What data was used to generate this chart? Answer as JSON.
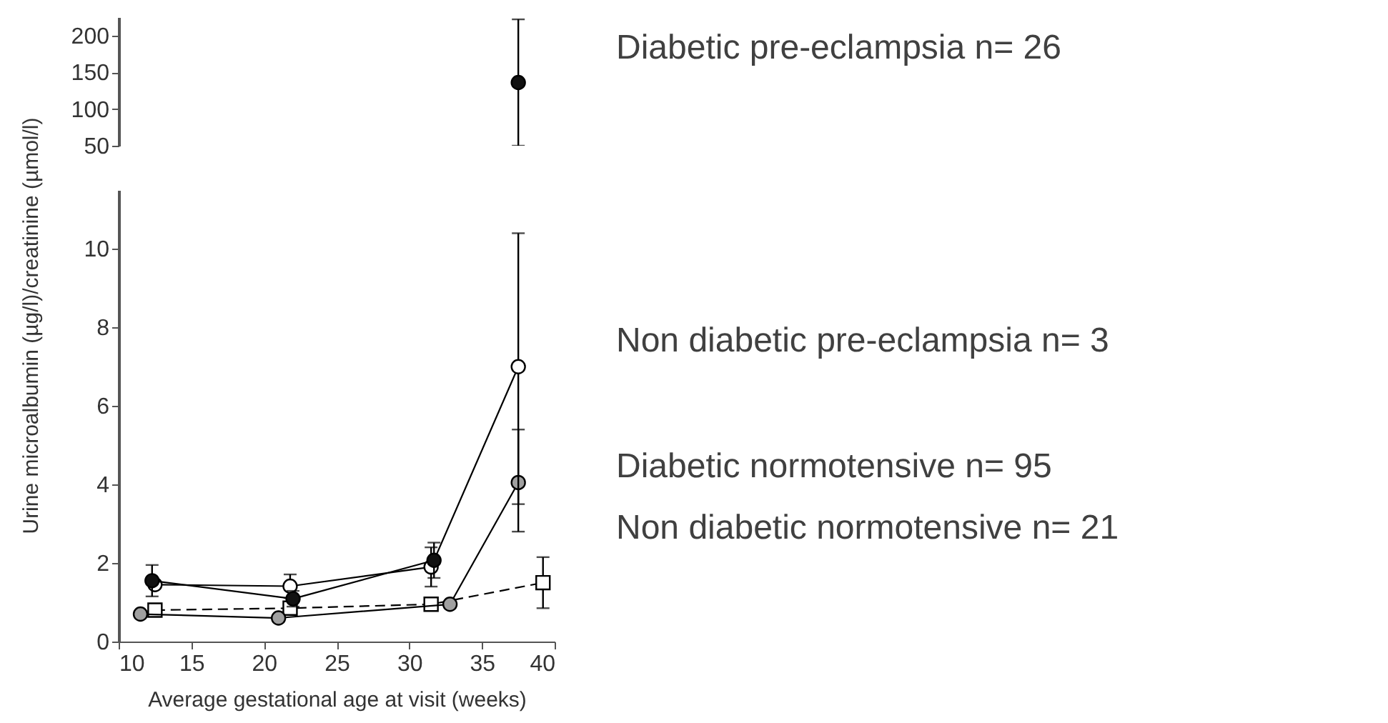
{
  "chart_data": [
    {
      "type": "line",
      "xlim": [
        10,
        40
      ],
      "ylim": [
        50,
        225
      ],
      "yticks": [
        50,
        100,
        150,
        200
      ],
      "tick_labels": "y",
      "grid": false,
      "series": [
        {
          "color": "#111111",
          "marker": "circle",
          "x": [
            37.5
          ],
          "values": [
            136
          ],
          "errors": [
            [
              50,
              222
            ]
          ]
        }
      ]
    },
    {
      "type": "line",
      "xlim": [
        10,
        40
      ],
      "ylim": [
        0,
        11.5
      ],
      "xticks": [
        10,
        15,
        20,
        25,
        30,
        35,
        40
      ],
      "yticks": [
        0,
        2,
        4,
        6,
        8,
        10
      ],
      "grid": false,
      "xlabel": "Average gestational age at visit (weeks)",
      "ylabel": "Urine microalbumin (µg/l)/creatinine (µmol/l)",
      "annotations": [
        "Diabetic pre-eclampsia n= 26",
        "Non diabetic pre-eclampsia n= 3",
        "Diabetic normotensive n= 95",
        "Non diabetic normotensive n= 21"
      ],
      "series": [
        {
          "color": "#111111",
          "marker": "circle",
          "x": [
            12.3,
            22,
            31.7
          ],
          "values": [
            1.55,
            1.09,
            2.07
          ],
          "errors": [
            0.4,
            0.2,
            0.45
          ]
        },
        {
          "color": "#ffffff",
          "marker": "circle",
          "x": [
            12.5,
            21.8,
            31.5,
            37.5
          ],
          "values": [
            1.45,
            1.41,
            1.9,
            7.0
          ],
          "errors": [
            null,
            0.3,
            0.5,
            [
              3.5,
              10.4
            ]
          ]
        },
        {
          "color": "#a0a0a0",
          "marker": "circle",
          "x": [
            11.5,
            21,
            32.8,
            37.5
          ],
          "values": [
            0.7,
            0.6,
            0.95,
            4.05
          ],
          "errors": [
            null,
            null,
            null,
            [
              2.8,
              5.4
            ]
          ]
        },
        {
          "color": "#ffffff",
          "marker": "square",
          "line_style": "dashed",
          "x": [
            12.5,
            21.8,
            31.5,
            39.2
          ],
          "values": [
            0.8,
            0.85,
            0.95,
            1.5
          ],
          "errors": [
            null,
            null,
            null,
            0.65
          ]
        }
      ]
    }
  ]
}
